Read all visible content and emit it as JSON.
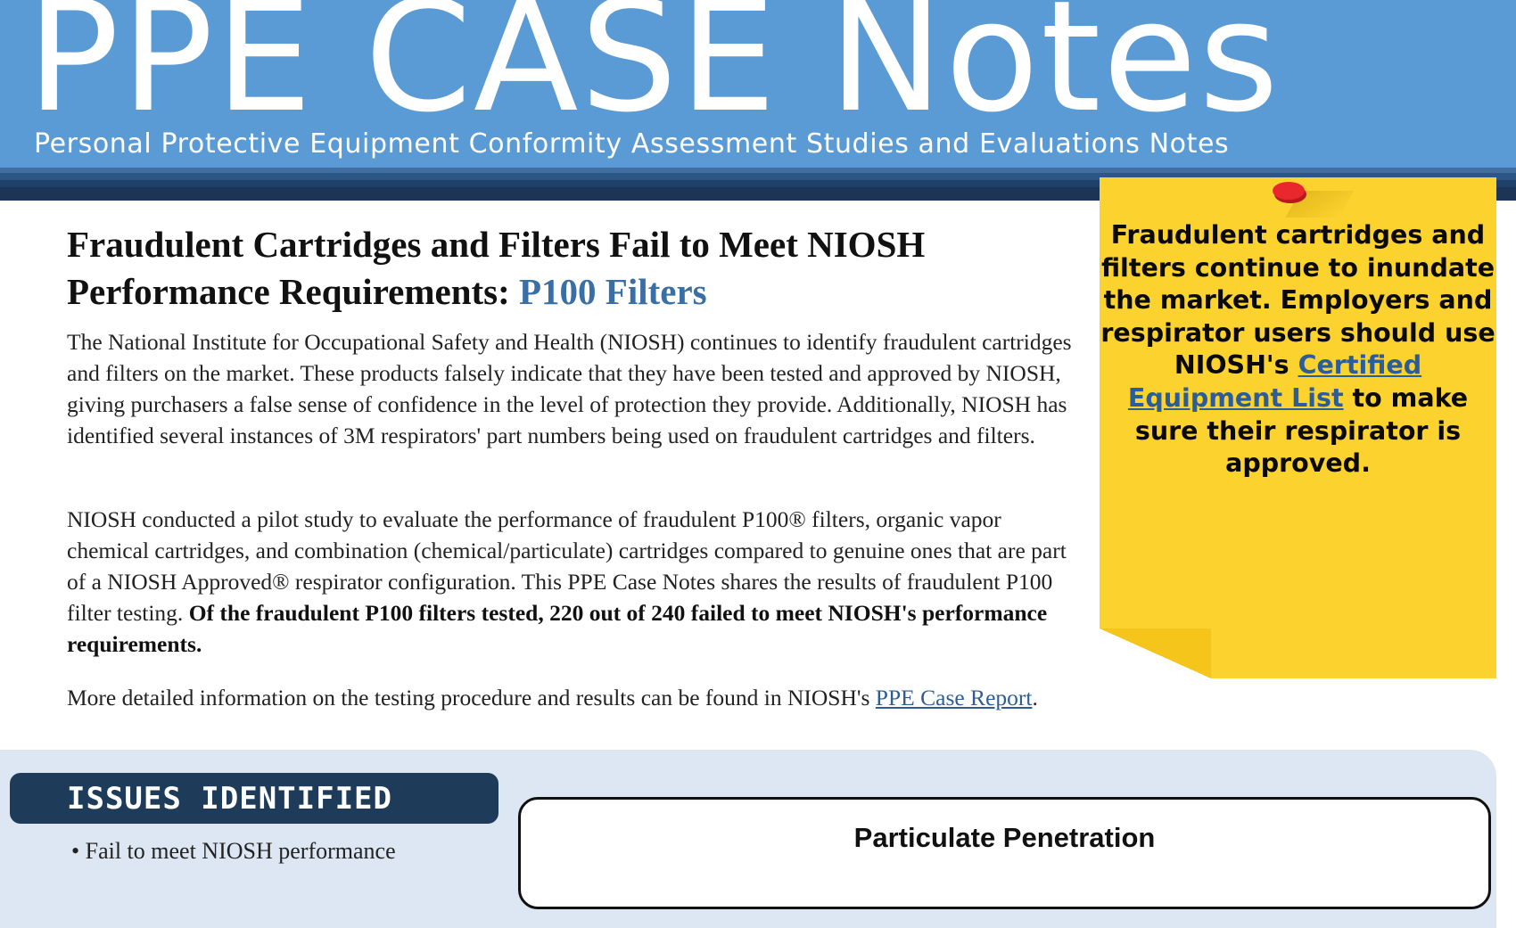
{
  "header": {
    "title": "PPE CASE Notes",
    "subtitle": "Personal Protective Equipment Conformity Assessment Studies and Evaluations Notes"
  },
  "article": {
    "heading_main": "Fraudulent Cartridges and Filters Fail to Meet NIOSH Performance Requirements: ",
    "heading_accent": "P100 Filters",
    "para1": "The National Institute for Occupational Safety and Health (NIOSH) continues to identify fraudulent cartridges and filters on the market. These products falsely indicate that they have been tested and approved by NIOSH, giving purchasers a false sense of confidence in the level of protection they provide. Additionally, NIOSH has identified several instances of 3M respirators' part numbers being used on fraudulent cartridges and filters.",
    "para2_text": "NIOSH conducted a pilot study to evaluate the performance of fraudulent P100® filters, organic vapor chemical cartridges, and combination (chemical/particulate) cartridges compared to genuine ones that are part of a NIOSH Approved® respirator configuration. This PPE Case Notes shares the results of fraudulent P100 filter testing. ",
    "para2_bold": "Of the fraudulent P100 filters tested, 220 out of 240 failed to meet NIOSH's performance requirements.",
    "para3_text": "More detailed information on the testing procedure and results can be found in NIOSH's ",
    "para3_link": "PPE Case Report",
    "para3_end": "."
  },
  "sticky_note": {
    "text_before": "Fraudulent cartridges and filters continue to inundate the market. Employers and respirator users should use NIOSH's ",
    "link": "Certified Equipment List",
    "text_after": " to make sure their respirator is approved."
  },
  "issues": {
    "heading": "ISSUES IDENTIFIED",
    "first_bullet": "•    Fail to meet NIOSH performance"
  },
  "chart": {
    "title": "Particulate Penetration"
  },
  "colors": {
    "header_blue": "#5b9bd5",
    "dark_navy": "#1f3b5a",
    "accent_blue": "#3a6fa6",
    "sticky_yellow": "#fcd22e",
    "pin_red": "#e8282c",
    "panel_light_blue": "#dce7f3"
  }
}
